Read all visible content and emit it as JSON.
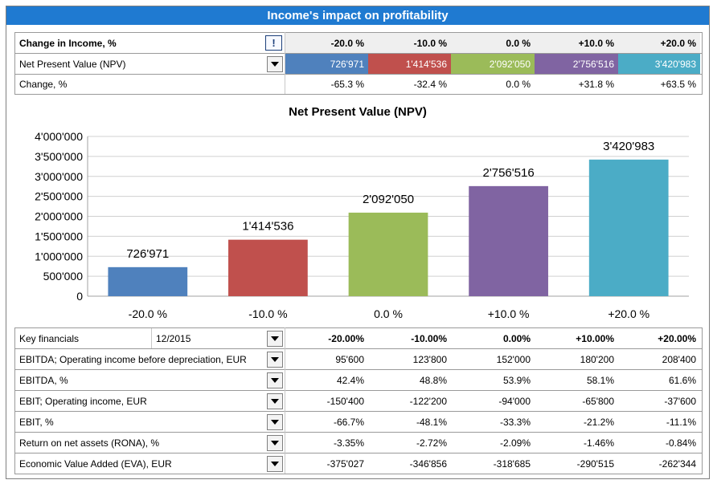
{
  "title": "Income's impact on profitability",
  "scenario_header": {
    "label": "Change in Income, %",
    "alert_glyph": "!",
    "values": [
      "-20.0 %",
      "-10.0 %",
      "0.0 %",
      "+10.0 %",
      "+20.0 %"
    ]
  },
  "npv_row": {
    "label": "Net Present Value (NPV)",
    "values": [
      "726'971",
      "1'414'536",
      "2'092'050",
      "2'756'516",
      "3'420'983"
    ]
  },
  "change_row": {
    "label": "Change, %",
    "values": [
      "-65.3 %",
      "-32.4 %",
      "0.0 %",
      "+31.8 %",
      "+63.5 %"
    ]
  },
  "colors": [
    "#4f81bd",
    "#c0504d",
    "#9bbb59",
    "#8064a2",
    "#4bacc6"
  ],
  "chart_data": {
    "type": "bar",
    "title": "Net Present Value (NPV)",
    "categories": [
      "-20.0 %",
      "-10.0 %",
      "0.0 %",
      "+10.0 %",
      "+20.0 %"
    ],
    "values": [
      726971,
      1414536,
      2092050,
      2756516,
      3420983
    ],
    "value_labels": [
      "726'971",
      "1'414'536",
      "2'092'050",
      "2'756'516",
      "3'420'983"
    ],
    "ylim": [
      0,
      4000000
    ],
    "yticks": [
      0,
      500000,
      1000000,
      1500000,
      2000000,
      2500000,
      3000000,
      3500000,
      4000000
    ],
    "ytick_labels": [
      "0",
      "500'000",
      "1'000'000",
      "1'500'000",
      "2'000'000",
      "2'500'000",
      "3'000'000",
      "3'500'000",
      "4'000'000"
    ],
    "grid": true
  },
  "financials": {
    "header_label": "Key financials",
    "period": "12/2015",
    "columns": [
      "-20.00%",
      "-10.00%",
      "0.00%",
      "+10.00%",
      "+20.00%"
    ],
    "rows": [
      {
        "label": "EBITDA; Operating income before depreciation, EUR",
        "values": [
          "95'600",
          "123'800",
          "152'000",
          "180'200",
          "208'400"
        ]
      },
      {
        "label": "EBITDA, %",
        "values": [
          "42.4%",
          "48.8%",
          "53.9%",
          "58.1%",
          "61.6%"
        ]
      },
      {
        "label": "EBIT; Operating income, EUR",
        "values": [
          "-150'400",
          "-122'200",
          "-94'000",
          "-65'800",
          "-37'600"
        ]
      },
      {
        "label": "EBIT, %",
        "values": [
          "-66.7%",
          "-48.1%",
          "-33.3%",
          "-21.2%",
          "-11.1%"
        ]
      },
      {
        "label": "Return on net assets (RONA), %",
        "values": [
          "-3.35%",
          "-2.72%",
          "-2.09%",
          "-1.46%",
          "-0.84%"
        ]
      },
      {
        "label": "Economic Value Added (EVA), EUR",
        "values": [
          "-375'027",
          "-346'856",
          "-318'685",
          "-290'515",
          "-262'344"
        ]
      }
    ]
  }
}
